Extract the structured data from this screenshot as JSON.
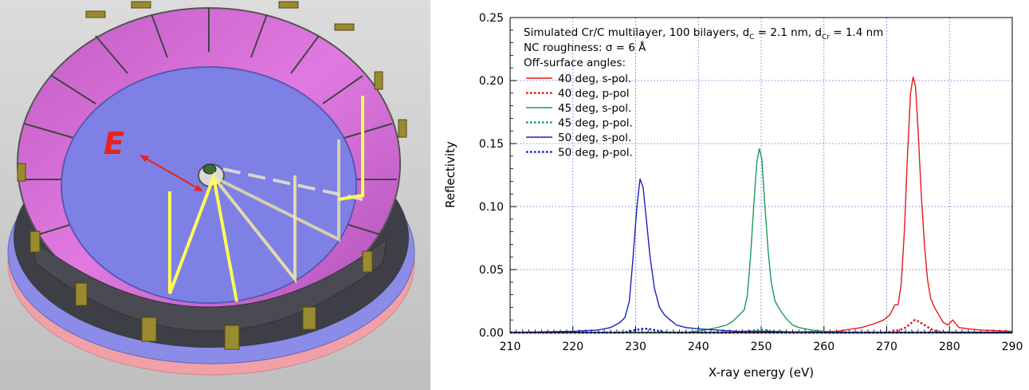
{
  "figure": {
    "field_label": "E",
    "colors": {
      "mirror_inner": "#d86ad2",
      "floor": "#7f80e6",
      "base": "#8a8ce8",
      "ring_pink": "#f2a0a8",
      "ray": "#ffff55",
      "vector": "#e8231e"
    }
  },
  "chart_data": {
    "type": "line",
    "xlabel": "X-ray energy (eV)",
    "ylabel": "Reflectivity",
    "xlim": [
      210,
      290
    ],
    "ylim": [
      0,
      0.25
    ],
    "xticks": [
      210,
      220,
      230,
      240,
      250,
      260,
      270,
      280,
      290
    ],
    "yticks": [
      0.0,
      0.05,
      0.1,
      0.15,
      0.2,
      0.25
    ],
    "grid": true,
    "annotation": {
      "line1_prefix": "Simulated Cr/C multilayer, 100 bilayers, d",
      "sub_c": "C",
      "line1_mid": " = 2.1 nm, d",
      "sub_cr": "Cr",
      "line1_suffix": " = 1.4 nm",
      "line2": "NC roughness: σ = 6 Å",
      "line3": "Off-surface angles:"
    },
    "legend_placement": "top-left",
    "series": [
      {
        "name": "40 deg, s-pol.",
        "color": "#e41a1a",
        "style": "solid",
        "x": [
          210,
          250,
          262,
          266,
          268,
          269.5,
          270.5,
          271.3,
          271.8,
          272.3,
          272.8,
          273.3,
          273.8,
          274.2,
          274.6,
          275.0,
          275.5,
          276.0,
          276.5,
          277.0,
          277.6,
          278.3,
          279,
          279.8,
          280.5,
          281.5,
          283,
          285,
          290
        ],
        "y": [
          0,
          0,
          0.001,
          0.004,
          0.007,
          0.01,
          0.014,
          0.022,
          0.022,
          0.038,
          0.08,
          0.14,
          0.19,
          0.203,
          0.195,
          0.16,
          0.11,
          0.07,
          0.042,
          0.027,
          0.02,
          0.014,
          0.008,
          0.006,
          0.01,
          0.004,
          0.003,
          0.002,
          0.001
        ]
      },
      {
        "name": "40 deg, p-pol",
        "color": "#e41a1a",
        "style": "dotted",
        "x": [
          210,
          270,
          272,
          273,
          274,
          274.5,
          275,
          276,
          277,
          278,
          280,
          290
        ],
        "y": [
          0,
          0,
          0.002,
          0.004,
          0.008,
          0.01,
          0.009,
          0.006,
          0.003,
          0.001,
          0,
          0
        ]
      },
      {
        "name": "45 deg, s-pol.",
        "color": "#1a9a5a",
        "style": "solid",
        "x": [
          210,
          238,
          241,
          243,
          244.5,
          245.5,
          246.5,
          247.3,
          247.8,
          248.3,
          248.8,
          249.3,
          249.7,
          250.1,
          250.6,
          251.1,
          251.6,
          252.2,
          253,
          254,
          255,
          256,
          258,
          260,
          265,
          290
        ],
        "y": [
          0,
          0,
          0.002,
          0.004,
          0.006,
          0.009,
          0.014,
          0.018,
          0.03,
          0.06,
          0.1,
          0.135,
          0.146,
          0.138,
          0.1,
          0.065,
          0.04,
          0.025,
          0.018,
          0.011,
          0.006,
          0.004,
          0.002,
          0.001,
          0,
          0
        ]
      },
      {
        "name": "45 deg, p-pol.",
        "color": "#1a9a5a",
        "style": "dotted",
        "x": [
          210,
          246,
          248,
          249.5,
          250.5,
          252,
          255,
          290
        ],
        "y": [
          0,
          0,
          0.001,
          0.002,
          0.002,
          0.001,
          0,
          0
        ]
      },
      {
        "name": "50 deg, s-pol.",
        "color": "#1a20c0",
        "style": "solid",
        "x": [
          210,
          220,
          224,
          226,
          227.5,
          228.3,
          229,
          229.6,
          230.2,
          230.7,
          231.2,
          231.7,
          232.3,
          233,
          233.8,
          234.6,
          235.5,
          236.5,
          238,
          240,
          243,
          246,
          250,
          260,
          290
        ],
        "y": [
          0,
          0.001,
          0.002,
          0.004,
          0.008,
          0.012,
          0.025,
          0.06,
          0.1,
          0.122,
          0.115,
          0.09,
          0.06,
          0.035,
          0.02,
          0.014,
          0.01,
          0.006,
          0.004,
          0.003,
          0.002,
          0.001,
          0.001,
          0,
          0
        ]
      },
      {
        "name": "50 deg, p-pol.",
        "color": "#1a20c0",
        "style": "dotted",
        "x": [
          210,
          228,
          230,
          231,
          232,
          233,
          235,
          290
        ],
        "y": [
          0,
          0,
          0.002,
          0.003,
          0.003,
          0.002,
          0,
          0
        ]
      }
    ]
  }
}
